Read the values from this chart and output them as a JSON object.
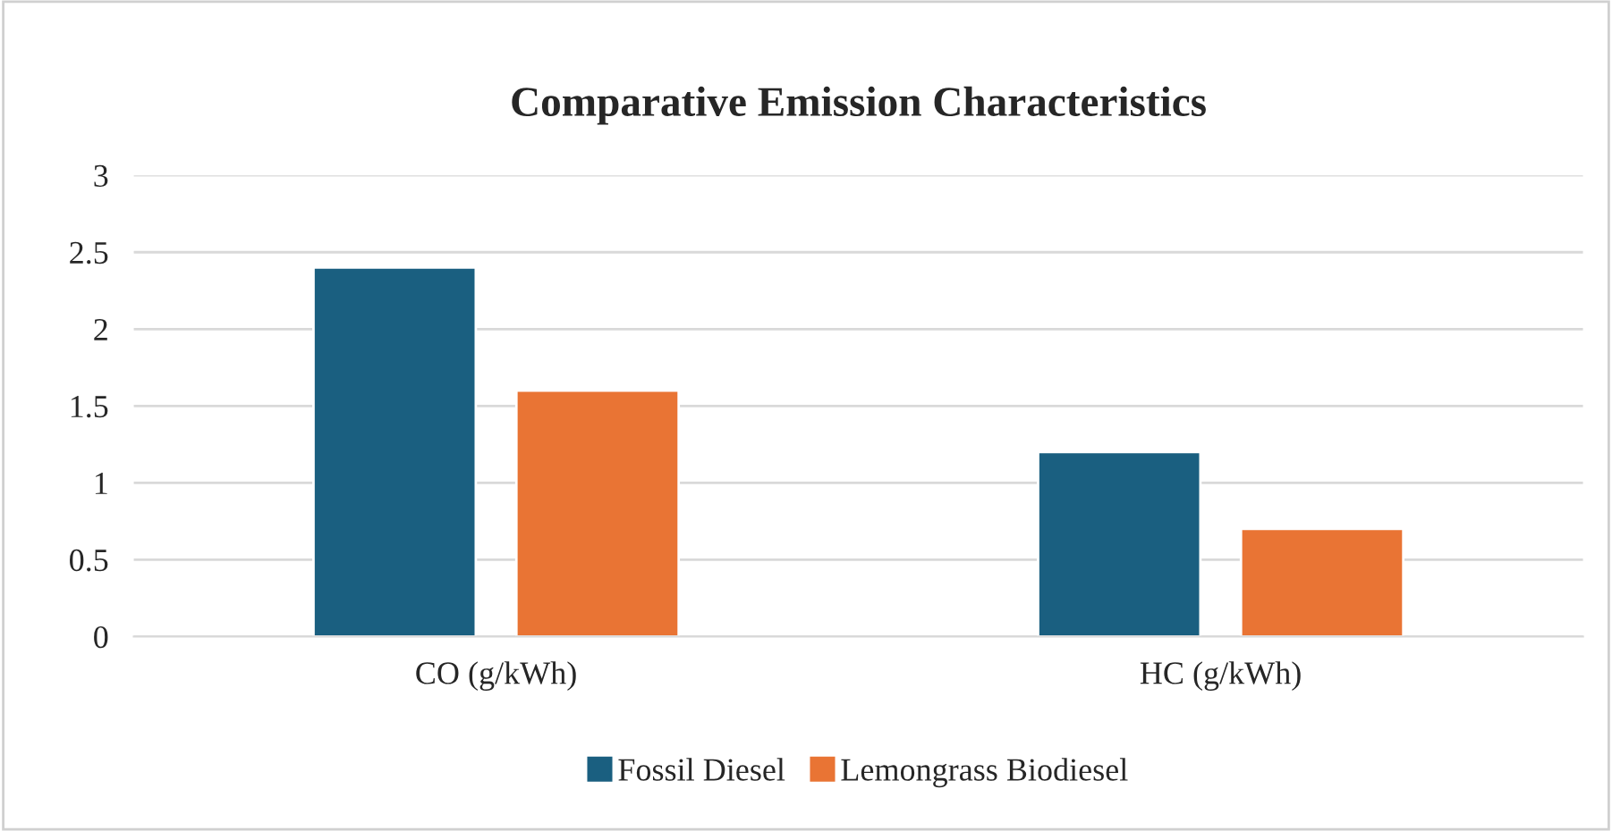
{
  "chart_data": {
    "type": "bar",
    "title": "Comparative Emission Characteristics",
    "categories": [
      "CO (g/kWh)",
      "HC (g/kWh)"
    ],
    "series": [
      {
        "name": "Fossil Diesel",
        "color": "#1a5f80",
        "values": [
          2.4,
          1.2
        ]
      },
      {
        "name": "Lemongrass Biodiesel",
        "color": "#e97434",
        "values": [
          1.6,
          0.7
        ]
      }
    ],
    "ylim": [
      0,
      3
    ],
    "yticks": [
      0,
      0.5,
      1,
      1.5,
      2,
      2.5,
      3
    ],
    "grid": "y",
    "legend": "bottom"
  }
}
